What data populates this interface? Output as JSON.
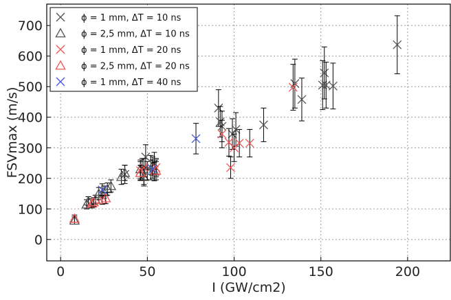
{
  "chart_data": {
    "type": "scatter",
    "xlabel": "I (GW/cm2)",
    "ylabel": "FSVmax (m/s)",
    "xlim": [
      -8,
      225
    ],
    "ylim": [
      -70,
      770
    ],
    "xticks": [
      0,
      50,
      100,
      150,
      200
    ],
    "yticks": [
      0,
      100,
      200,
      300,
      400,
      500,
      600,
      700
    ],
    "grid": true,
    "legend_position": "top-left",
    "series": [
      {
        "name": "ϕ = 1 mm, ΔT = 10 ns",
        "marker": "x",
        "color": "#555555",
        "points": [
          {
            "x": 37,
            "y": 213,
            "err": 30
          },
          {
            "x": 47,
            "y": 230,
            "err": 35
          },
          {
            "x": 48,
            "y": 210,
            "err": 30
          },
          {
            "x": 49,
            "y": 270,
            "err": 40
          },
          {
            "x": 52,
            "y": 235,
            "err": 40
          },
          {
            "x": 54,
            "y": 250,
            "err": 35
          },
          {
            "x": 91,
            "y": 430,
            "err": 60
          },
          {
            "x": 92,
            "y": 385,
            "err": 50
          },
          {
            "x": 93,
            "y": 370,
            "err": 50
          },
          {
            "x": 99,
            "y": 345,
            "err": 50
          },
          {
            "x": 101,
            "y": 360,
            "err": 55
          },
          {
            "x": 117,
            "y": 375,
            "err": 55
          },
          {
            "x": 135,
            "y": 510,
            "err": 80
          },
          {
            "x": 139,
            "y": 458,
            "err": 70
          },
          {
            "x": 151,
            "y": 505,
            "err": 80
          },
          {
            "x": 152,
            "y": 545,
            "err": 85
          },
          {
            "x": 153,
            "y": 505,
            "err": 75
          },
          {
            "x": 157,
            "y": 502,
            "err": 75
          },
          {
            "x": 194,
            "y": 637,
            "err": 95
          }
        ]
      },
      {
        "name": "ϕ = 2,5 mm, ΔT = 10 ns",
        "marker": "triangle",
        "color": "#555555",
        "points": [
          {
            "x": 8,
            "y": 62,
            "err": 12
          },
          {
            "x": 15,
            "y": 115,
            "err": 15
          },
          {
            "x": 16,
            "y": 125,
            "err": 15
          },
          {
            "x": 20,
            "y": 130,
            "err": 15
          },
          {
            "x": 22,
            "y": 150,
            "err": 20
          },
          {
            "x": 25,
            "y": 155,
            "err": 20
          },
          {
            "x": 27,
            "y": 165,
            "err": 20
          },
          {
            "x": 29,
            "y": 175,
            "err": 20
          },
          {
            "x": 35,
            "y": 205,
            "err": 25
          },
          {
            "x": 37,
            "y": 218,
            "err": 25
          },
          {
            "x": 46,
            "y": 230,
            "err": 30
          },
          {
            "x": 48,
            "y": 205,
            "err": 30
          },
          {
            "x": 50,
            "y": 225,
            "err": 30
          },
          {
            "x": 53,
            "y": 240,
            "err": 30
          },
          {
            "x": 54,
            "y": 222,
            "err": 30
          }
        ]
      },
      {
        "name": "ϕ = 1 mm, ΔT = 20 ns",
        "marker": "x",
        "color": "#ee5555",
        "points": [
          {
            "x": 46,
            "y": 225,
            "err": 30
          },
          {
            "x": 48,
            "y": 235,
            "err": 30
          },
          {
            "x": 55,
            "y": 235,
            "err": 30
          },
          {
            "x": 93,
            "y": 345,
            "err": 45
          },
          {
            "x": 97,
            "y": 318,
            "err": 45
          },
          {
            "x": 98,
            "y": 235,
            "err": 35
          },
          {
            "x": 100,
            "y": 300,
            "err": 45
          },
          {
            "x": 103,
            "y": 315,
            "err": 45
          },
          {
            "x": 109,
            "y": 315,
            "err": 45
          },
          {
            "x": 134,
            "y": 498,
            "err": 75
          }
        ]
      },
      {
        "name": "ϕ = 2,5 mm, ΔT = 20 ns",
        "marker": "triangle",
        "color": "#ee5555",
        "points": [
          {
            "x": 8,
            "y": 68,
            "err": 12
          },
          {
            "x": 18,
            "y": 118,
            "err": 15
          },
          {
            "x": 19,
            "y": 122,
            "err": 15
          },
          {
            "x": 24,
            "y": 130,
            "err": 15
          },
          {
            "x": 26,
            "y": 135,
            "err": 18
          },
          {
            "x": 46,
            "y": 218,
            "err": 25
          },
          {
            "x": 55,
            "y": 225,
            "err": 30
          }
        ]
      },
      {
        "name": "ϕ = 1 mm, ΔT = 40 ns",
        "marker": "x",
        "color": "#4455dd",
        "points": [
          {
            "x": 24,
            "y": 162,
            "err": 20
          },
          {
            "x": 53,
            "y": 230,
            "err": 30
          },
          {
            "x": 78,
            "y": 330,
            "err": 50
          }
        ]
      }
    ]
  }
}
